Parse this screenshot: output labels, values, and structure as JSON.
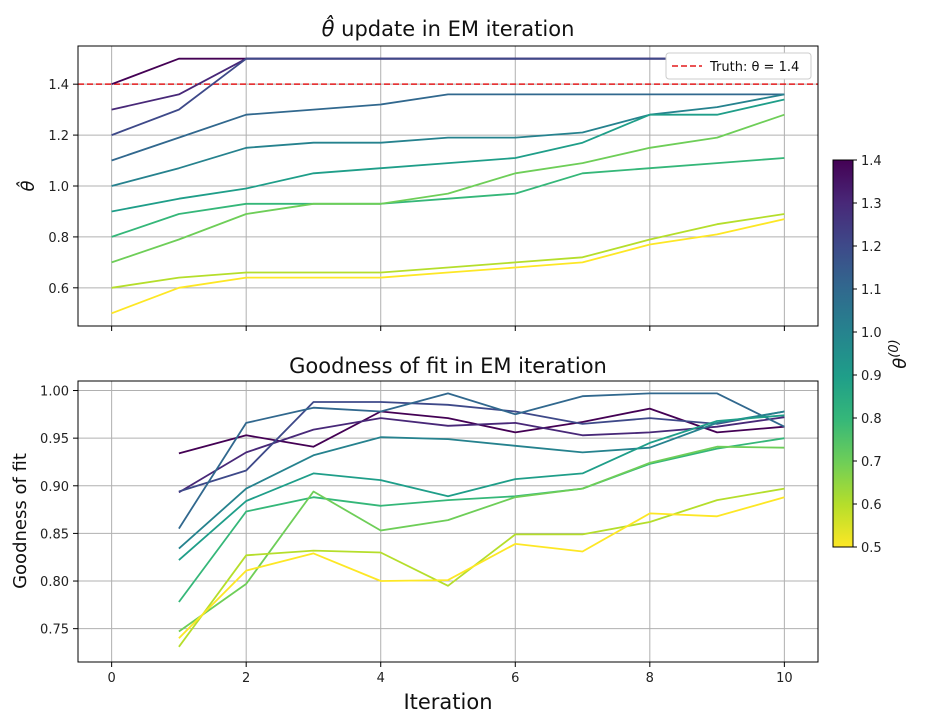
{
  "chart_data": [
    {
      "type": "line",
      "title": "θ̂ update in EM iteration",
      "xlabel": "",
      "ylabel": "θ̂",
      "xlim": [
        -0.5,
        10.5
      ],
      "ylim": [
        0.45,
        1.55
      ],
      "xticks": [
        0,
        2,
        4,
        6,
        8,
        10
      ],
      "yticks": [
        0.6,
        0.8,
        1.0,
        1.2,
        1.4
      ],
      "ytick_labels": [
        "0.6",
        "0.8",
        "1.0",
        "1.2",
        "1.4"
      ],
      "grid": true,
      "reference_line": {
        "y": 1.4,
        "color": "#e41a1c",
        "style": "dashed",
        "label": "Truth: θ = 1.4"
      },
      "legend": {
        "position": "top-right",
        "label": "Truth: θ = 1.4"
      },
      "x": [
        0,
        1,
        2,
        3,
        4,
        5,
        6,
        7,
        8,
        9,
        10
      ],
      "series": [
        {
          "name": "θ(0)=1.4",
          "init": 1.4,
          "values": [
            1.4,
            1.5,
            1.5,
            1.5,
            1.5,
            1.5,
            1.5,
            1.5,
            1.5,
            1.5,
            1.5
          ]
        },
        {
          "name": "θ(0)=1.3",
          "init": 1.3,
          "values": [
            1.3,
            1.36,
            1.5,
            1.5,
            1.5,
            1.5,
            1.5,
            1.5,
            1.5,
            1.5,
            1.5
          ]
        },
        {
          "name": "θ(0)=1.2",
          "init": 1.2,
          "values": [
            1.2,
            1.3,
            1.5,
            1.5,
            1.5,
            1.5,
            1.5,
            1.5,
            1.5,
            1.5,
            1.5
          ]
        },
        {
          "name": "θ(0)=1.1",
          "init": 1.1,
          "values": [
            1.1,
            1.19,
            1.28,
            1.3,
            1.32,
            1.36,
            1.36,
            1.36,
            1.36,
            1.36,
            1.36
          ]
        },
        {
          "name": "θ(0)=1.0",
          "init": 1.0,
          "values": [
            1.0,
            1.07,
            1.15,
            1.17,
            1.17,
            1.19,
            1.19,
            1.21,
            1.28,
            1.31,
            1.36
          ]
        },
        {
          "name": "θ(0)=0.9",
          "init": 0.9,
          "values": [
            0.9,
            0.95,
            0.99,
            1.05,
            1.07,
            1.09,
            1.11,
            1.17,
            1.28,
            1.28,
            1.34
          ]
        },
        {
          "name": "θ(0)=0.8",
          "init": 0.8,
          "values": [
            0.8,
            0.89,
            0.93,
            0.93,
            0.93,
            0.95,
            0.97,
            1.05,
            1.07,
            1.09,
            1.11
          ]
        },
        {
          "name": "θ(0)=0.7",
          "init": 0.7,
          "values": [
            0.7,
            0.79,
            0.89,
            0.93,
            0.93,
            0.97,
            1.05,
            1.09,
            1.15,
            1.19,
            1.28
          ]
        },
        {
          "name": "θ(0)=0.6",
          "init": 0.6,
          "values": [
            0.6,
            0.64,
            0.66,
            0.66,
            0.66,
            0.68,
            0.7,
            0.72,
            0.79,
            0.85,
            0.89
          ]
        },
        {
          "name": "θ(0)=0.5",
          "init": 0.5,
          "values": [
            0.5,
            0.6,
            0.64,
            0.64,
            0.64,
            0.66,
            0.68,
            0.7,
            0.77,
            0.81,
            0.87
          ]
        }
      ]
    },
    {
      "type": "line",
      "title": "Goodness of fit in EM iteration",
      "xlabel": "Iteration",
      "ylabel": "Goodness of fit",
      "xlim": [
        -0.5,
        10.5
      ],
      "ylim": [
        0.715,
        1.01
      ],
      "xticks": [
        0,
        2,
        4,
        6,
        8,
        10
      ],
      "yticks": [
        0.75,
        0.8,
        0.85,
        0.9,
        0.95,
        1.0
      ],
      "ytick_labels": [
        "0.75",
        "0.80",
        "0.85",
        "0.90",
        "0.95",
        "1.00"
      ],
      "grid": true,
      "x": [
        1,
        2,
        3,
        4,
        5,
        6,
        7,
        8,
        9,
        10
      ],
      "series": [
        {
          "name": "θ(0)=1.4",
          "init": 1.4,
          "values": [
            0.934,
            0.953,
            0.941,
            0.978,
            0.971,
            0.956,
            0.967,
            0.981,
            0.956,
            0.962
          ]
        },
        {
          "name": "θ(0)=1.3",
          "init": 1.3,
          "values": [
            0.893,
            0.935,
            0.959,
            0.971,
            0.963,
            0.966,
            0.953,
            0.956,
            0.962,
            0.972
          ]
        },
        {
          "name": "θ(0)=1.2",
          "init": 1.2,
          "values": [
            0.894,
            0.916,
            0.988,
            0.988,
            0.985,
            0.978,
            0.965,
            0.971,
            0.965,
            0.978
          ]
        },
        {
          "name": "θ(0)=1.1",
          "init": 1.1,
          "values": [
            0.855,
            0.966,
            0.982,
            0.978,
            0.997,
            0.975,
            0.994,
            0.997,
            0.997,
            0.962
          ]
        },
        {
          "name": "θ(0)=1.0",
          "init": 1.0,
          "values": [
            0.834,
            0.897,
            0.932,
            0.951,
            0.949,
            0.942,
            0.935,
            0.94,
            0.966,
            0.978
          ]
        },
        {
          "name": "θ(0)=0.9",
          "init": 0.9,
          "values": [
            0.822,
            0.884,
            0.913,
            0.906,
            0.889,
            0.907,
            0.913,
            0.945,
            0.968,
            0.974
          ]
        },
        {
          "name": "θ(0)=0.8",
          "init": 0.8,
          "values": [
            0.778,
            0.873,
            0.888,
            0.879,
            0.885,
            0.889,
            0.897,
            0.923,
            0.939,
            0.95
          ]
        },
        {
          "name": "θ(0)=0.7",
          "init": 0.7,
          "values": [
            0.747,
            0.797,
            0.894,
            0.853,
            0.864,
            0.888,
            0.897,
            0.924,
            0.941,
            0.94
          ]
        },
        {
          "name": "θ(0)=0.6",
          "init": 0.6,
          "values": [
            0.731,
            0.827,
            0.832,
            0.83,
            0.795,
            0.849,
            0.849,
            0.862,
            0.885,
            0.897
          ]
        },
        {
          "name": "θ(0)=0.5",
          "init": 0.5,
          "values": [
            0.74,
            0.811,
            0.829,
            0.8,
            0.801,
            0.839,
            0.831,
            0.871,
            0.868,
            0.888
          ]
        }
      ]
    }
  ],
  "colorbar": {
    "label": "θ(0)",
    "range": [
      0.5,
      1.4
    ],
    "ticks": [
      "0.5",
      "0.6",
      "0.7",
      "0.8",
      "0.9",
      "1.0",
      "1.1",
      "1.2",
      "1.3",
      "1.4"
    ],
    "colormap": "viridis (reversed)",
    "colors": [
      "#fde725",
      "#b5de2b",
      "#6ece58",
      "#35b779",
      "#1f9e89",
      "#26828e",
      "#31688e",
      "#3e4989",
      "#482878",
      "#440154"
    ]
  }
}
